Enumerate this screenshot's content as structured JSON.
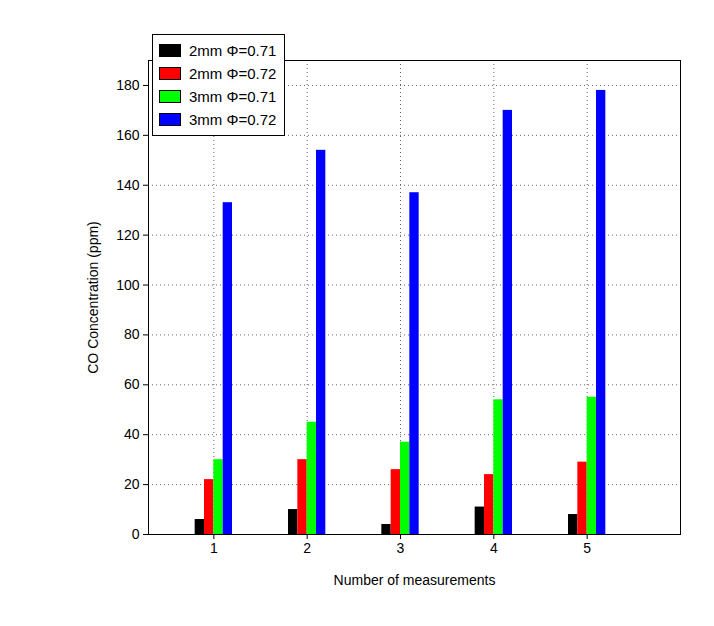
{
  "chart_data": {
    "type": "bar",
    "x_label": "Number of measurements",
    "y_label": "CO Concentration (ppm)",
    "categories": [
      "1",
      "2",
      "3",
      "4",
      "5"
    ],
    "series": [
      {
        "name": "2mm Φ=0.71",
        "color": "#000000",
        "values": [
          6,
          10,
          4,
          11,
          8
        ]
      },
      {
        "name": "2mm Φ=0.72",
        "color": "#ff0000",
        "values": [
          22,
          30,
          26,
          24,
          29
        ]
      },
      {
        "name": "3mm Φ=0.71",
        "color": "#00ff00",
        "values": [
          30,
          45,
          37,
          54,
          55
        ]
      },
      {
        "name": "3mm Φ=0.72",
        "color": "#0000ff",
        "values": [
          133,
          154,
          137,
          170,
          178
        ]
      }
    ],
    "ylim": [
      0,
      190
    ],
    "yticks": [
      0,
      20,
      40,
      60,
      80,
      100,
      120,
      140,
      160,
      180
    ],
    "grid": true,
    "legend": "top-left"
  }
}
